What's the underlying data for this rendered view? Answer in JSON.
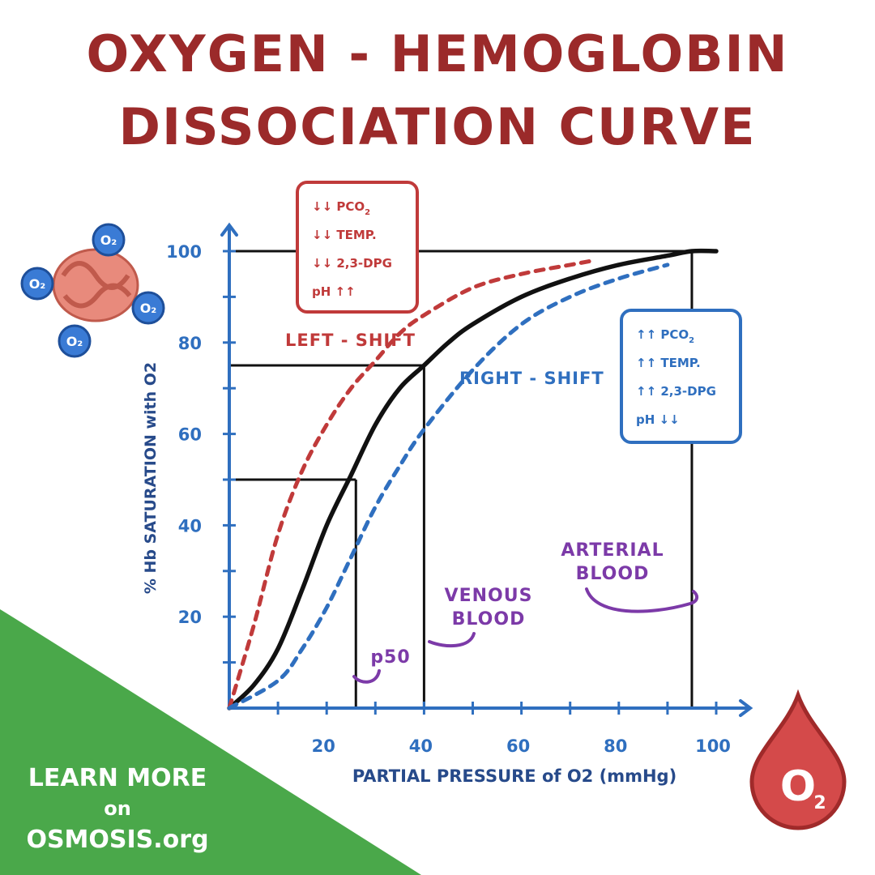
{
  "title": {
    "line1": "OXYGEN - HEMOGLOBIN",
    "line2": "DISSOCIATION CURVE"
  },
  "colors": {
    "title": "#9b2a2a",
    "axis": "#2f6fbf",
    "axis_title": "#274a8a",
    "left_shift": "#c03a3a",
    "right_shift": "#2f6fbf",
    "normal": "#111111",
    "annotation": "#7c3aa8",
    "promo_bg": "#4aa84a",
    "drop": "#c53a3a"
  },
  "left_box": {
    "lines": [
      {
        "arrows": "↓↓",
        "main": "PCO",
        "sub": "2"
      },
      {
        "arrows": "↓↓",
        "main": "TEMP.",
        "sub": ""
      },
      {
        "arrows": "↓↓",
        "main": "2,3-DPG",
        "sub": ""
      },
      {
        "arrows": "↑↑",
        "main": "pH",
        "sub": ""
      }
    ]
  },
  "right_box": {
    "lines": [
      {
        "arrows": "↑↑",
        "main": "PCO",
        "sub": "2"
      },
      {
        "arrows": "↑↑",
        "main": "TEMP.",
        "sub": ""
      },
      {
        "arrows": "↑↑",
        "main": "2,3-DPG",
        "sub": ""
      },
      {
        "arrows": "↓↓",
        "main": "pH",
        "sub": ""
      }
    ]
  },
  "labels": {
    "left_shift": "LEFT - SHIFT",
    "right_shift": "RIGHT - SHIFT",
    "arterial_1": "ARTERIAL",
    "arterial_2": "BLOOD",
    "venous_1": "VENOUS",
    "venous_2": "BLOOD",
    "p50": "p50"
  },
  "promo": {
    "line1": "LEARN MORE",
    "line2": "on",
    "line3": "OSMOSIS.org"
  },
  "icons": {
    "molecule": "hemoglobin-molecule-icon",
    "drop": "o2-drop-icon"
  },
  "chart_data": {
    "type": "line",
    "title": "OXYGEN - HEMOGLOBIN DISSOCIATION CURVE",
    "xlabel": "PARTIAL PRESSURE of O2 (mmHg)",
    "ylabel": "% Hb SATURATION with O2",
    "xlim": [
      0,
      100
    ],
    "ylim": [
      0,
      100
    ],
    "x_ticks": [
      20,
      40,
      60,
      80,
      100
    ],
    "y_ticks": [
      20,
      40,
      60,
      80,
      100
    ],
    "grid": false,
    "series": [
      {
        "name": "normal",
        "style": "solid",
        "x": [
          0,
          5,
          10,
          15,
          20,
          25,
          30,
          35,
          40,
          45,
          50,
          60,
          70,
          80,
          90,
          95,
          100
        ],
        "y": [
          0,
          5,
          13,
          26,
          40,
          51,
          62,
          70,
          75,
          80,
          84,
          90,
          94,
          97,
          99,
          100,
          100
        ]
      },
      {
        "name": "left-shift",
        "style": "dashed",
        "x": [
          0,
          5,
          10,
          15,
          20,
          25,
          30,
          35,
          40,
          50,
          60,
          70,
          75
        ],
        "y": [
          0,
          18,
          38,
          52,
          62,
          70,
          76,
          82,
          86,
          92,
          95,
          97,
          98
        ]
      },
      {
        "name": "right-shift",
        "style": "dashed",
        "x": [
          0,
          10,
          15,
          20,
          25,
          30,
          35,
          40,
          50,
          60,
          70,
          80,
          90
        ],
        "y": [
          0,
          6,
          13,
          22,
          33,
          44,
          53,
          61,
          74,
          84,
          90,
          94,
          97
        ]
      }
    ],
    "reference_points": [
      {
        "name": "p50",
        "x": 26,
        "y": 50
      },
      {
        "name": "venous",
        "x": 40,
        "y": 75
      },
      {
        "name": "arterial",
        "x": 95,
        "y": 100
      }
    ]
  }
}
